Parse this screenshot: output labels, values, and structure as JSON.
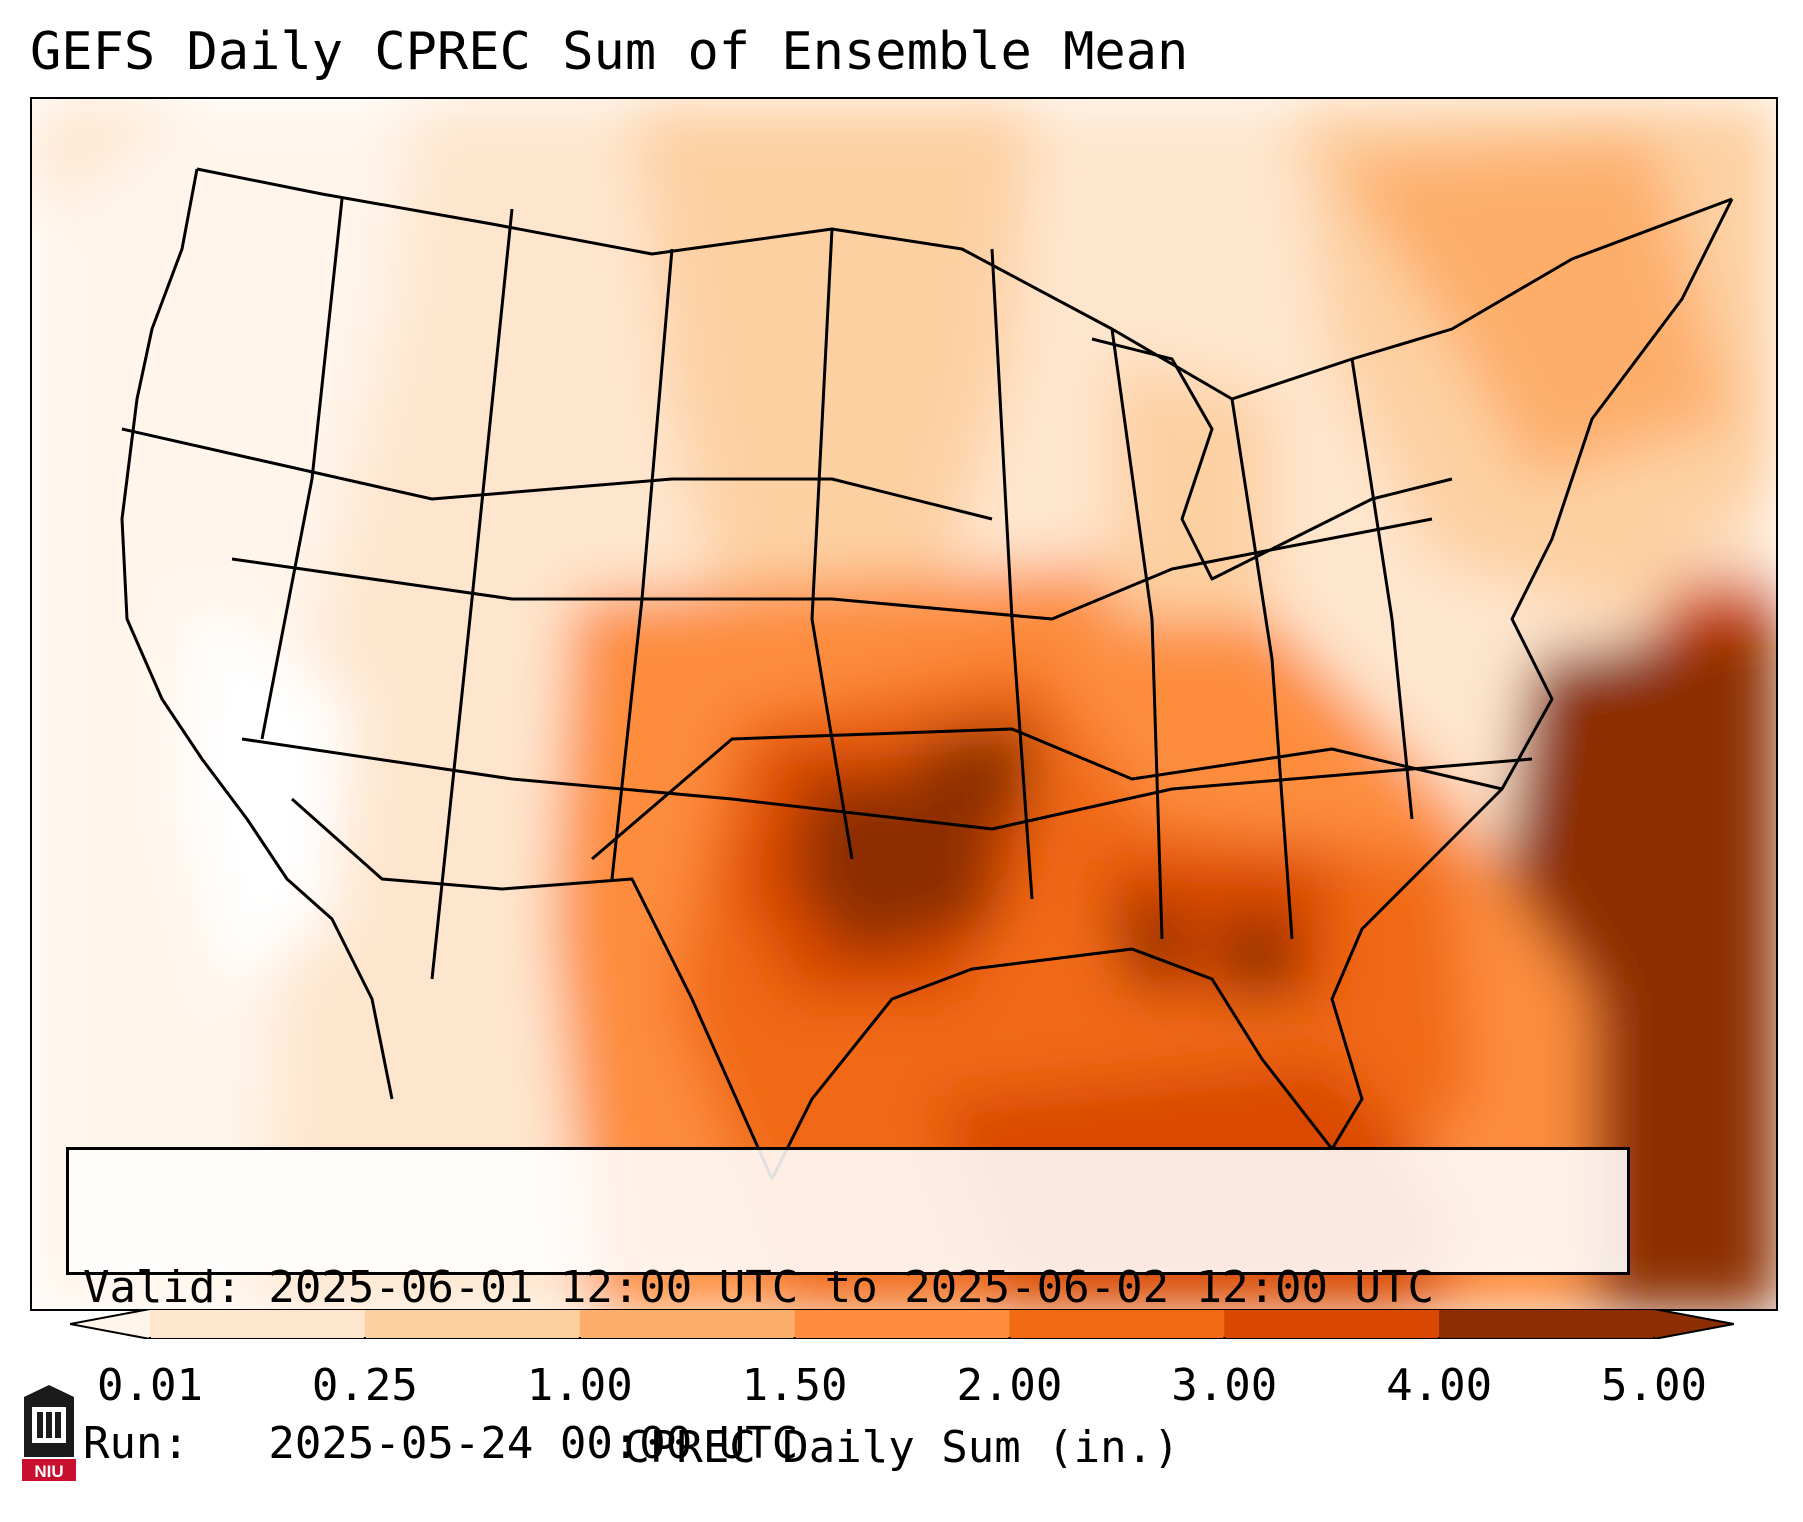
{
  "title": "GEFS Daily CPREC Sum of Ensemble Mean",
  "info": {
    "valid_line": "Valid: 2025-06-01 12:00 UTC to 2025-06-02 12:00 UTC",
    "run_line": "Run:   2025-05-24 00:00 UTC"
  },
  "colorbar": {
    "label": "CPREC Daily Sum (in.)",
    "ticks": [
      "0.01",
      "0.25",
      "1.00",
      "1.50",
      "2.00",
      "3.00",
      "4.00",
      "5.00"
    ],
    "colors": [
      "#fff5eb",
      "#fee6ce",
      "#fdd0a2",
      "#fdae6b",
      "#fd8d3c",
      "#f16913",
      "#d94801",
      "#8c2d04"
    ]
  },
  "logo": {
    "text": "NIU"
  }
}
